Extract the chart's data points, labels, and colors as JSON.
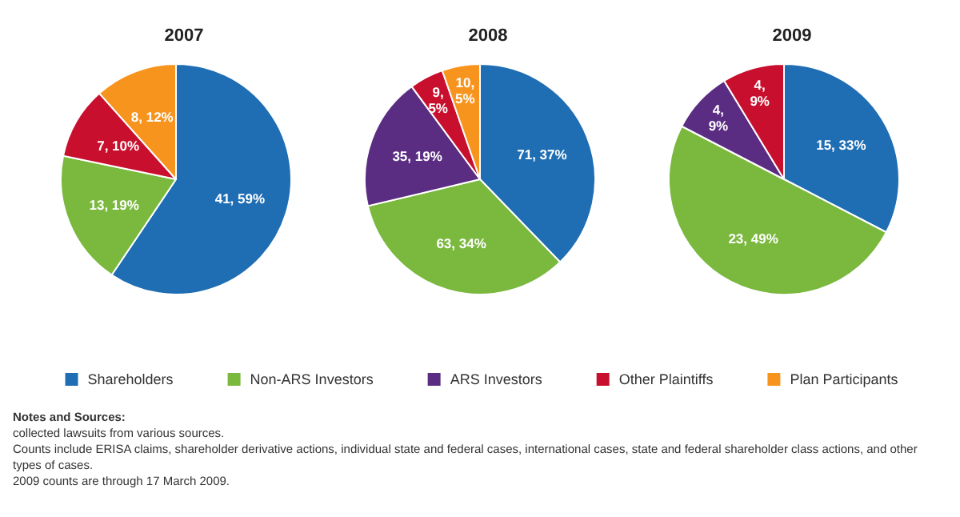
{
  "chart_data": {
    "type": "pie",
    "categories": [
      "Shareholders",
      "Non-ARS Investors",
      "ARS Investors",
      "Other Plaintiffs",
      "Plan Participants"
    ],
    "colors": [
      "#1f6db3",
      "#7ab83e",
      "#5a2d82",
      "#c8102e",
      "#f7941d"
    ],
    "legend": "bottom",
    "series": [
      {
        "name": "2007",
        "values": [
          41,
          13,
          null,
          7,
          8
        ],
        "value_labels": [
          "41, 59%",
          "13, 19%",
          null,
          "7, 10%",
          "8, 12%"
        ]
      },
      {
        "name": "2008",
        "values": [
          71,
          63,
          35,
          9,
          10
        ],
        "value_labels": [
          "71, 37%",
          "63, 34%",
          "35, 19%",
          "9, 5%",
          "10, 5%"
        ]
      },
      {
        "name": "2009",
        "values": [
          15,
          23,
          4,
          4,
          null
        ],
        "value_labels": [
          "15, 33%",
          "23, 49%",
          "4, 9%",
          "4, 9%",
          null
        ]
      }
    ],
    "annotations": [
      "Notes and Sources:",
      "collected lawsuits from various sources.",
      "Counts include ERISA claims, shareholder derivative actions, individual state and federal cases, international cases, state and federal shareholder class actions, and other types of cases.",
      "2009 counts are through 17 March 2009."
    ]
  }
}
